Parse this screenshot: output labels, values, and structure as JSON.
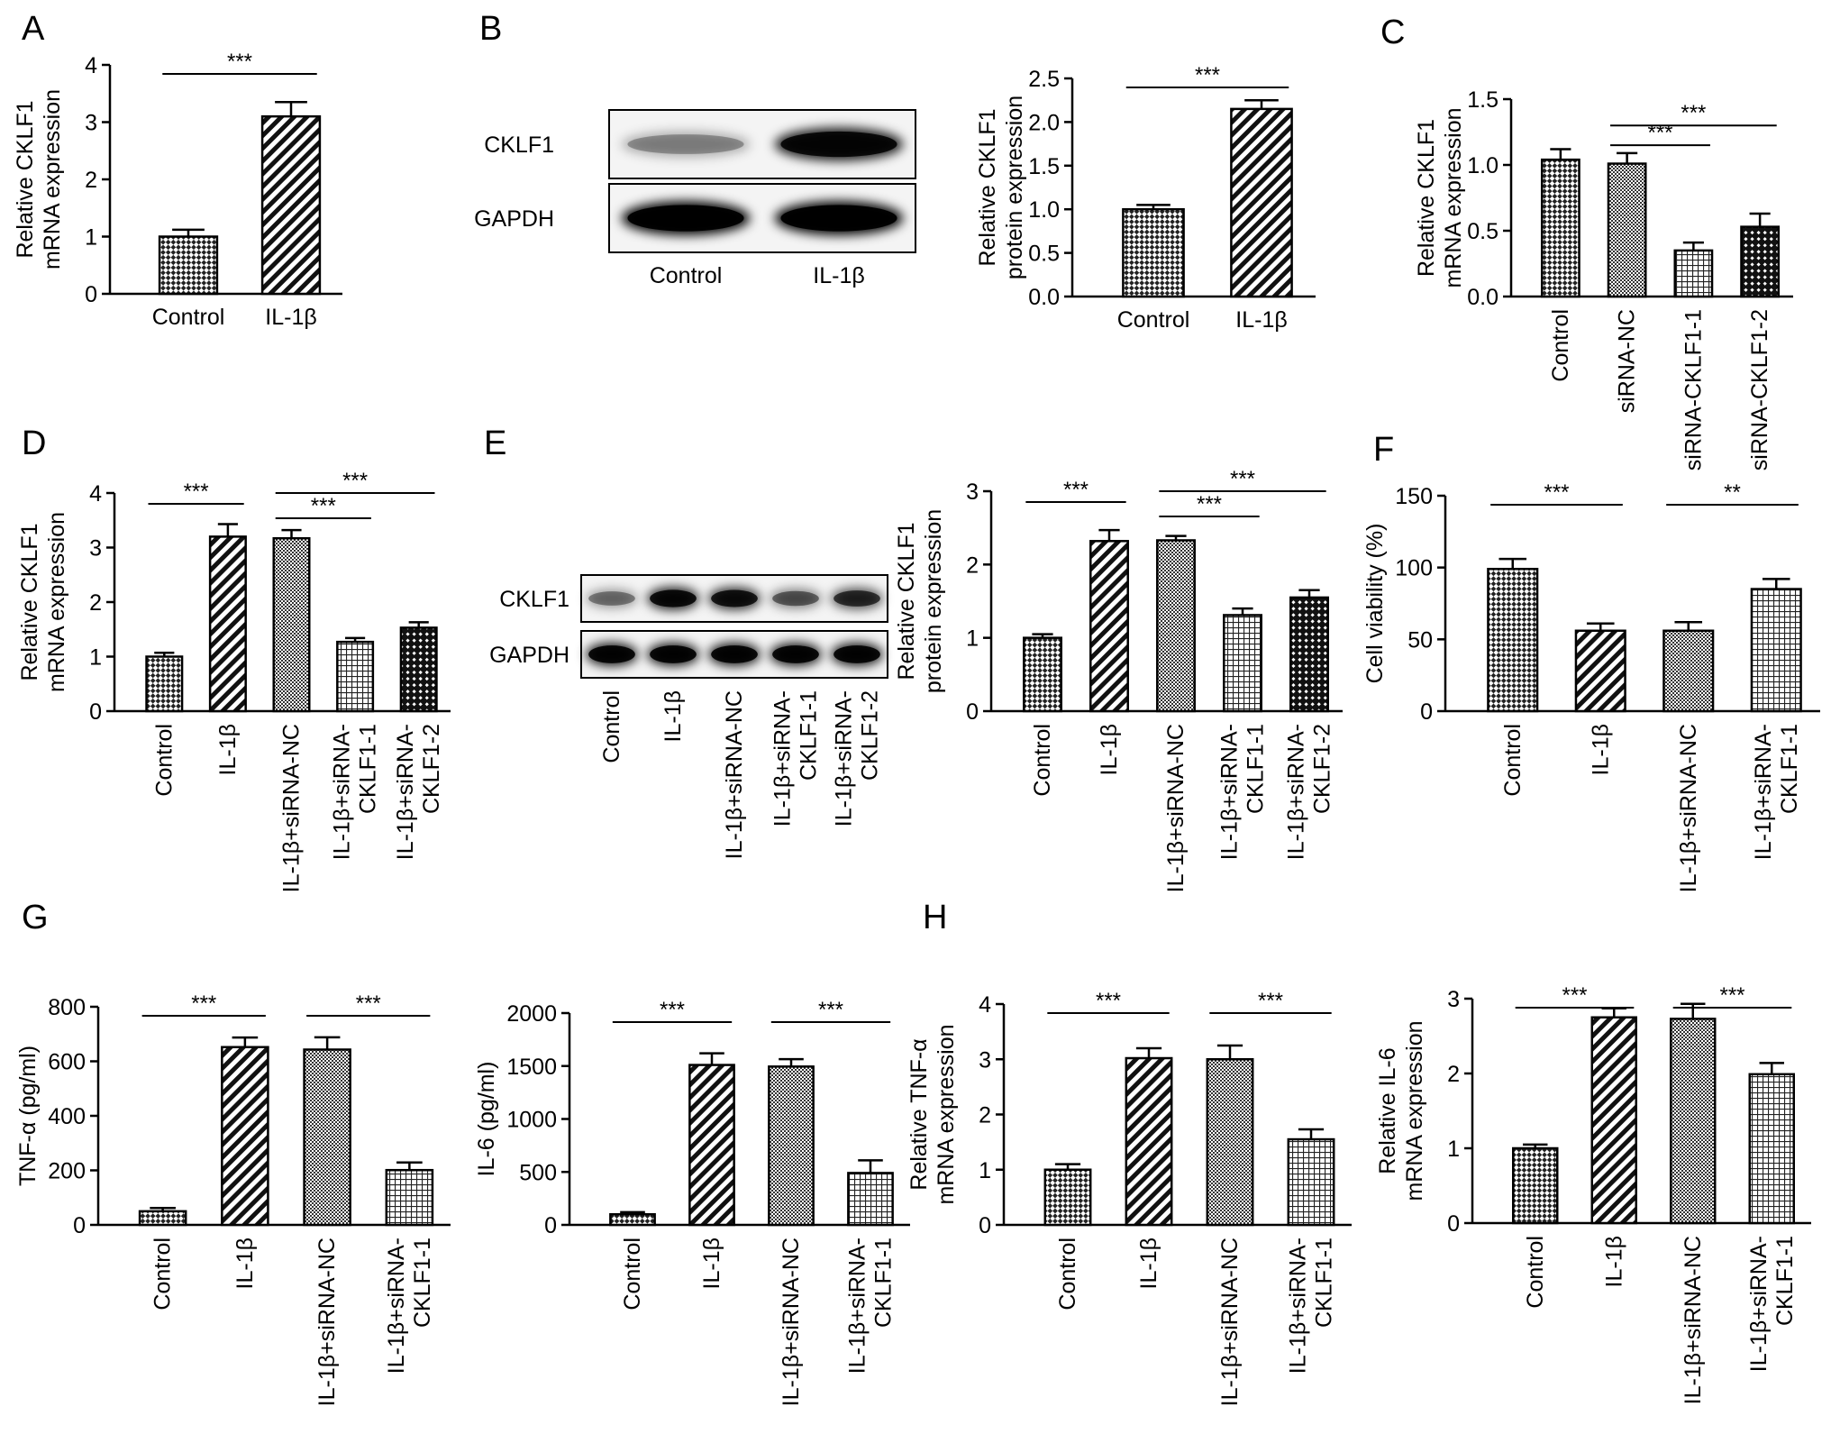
{
  "chart_data": [
    {
      "id": "A",
      "panel_label": "A",
      "type": "bar",
      "ylabel": [
        "Relative CKLF1",
        "mRNA expression"
      ],
      "ylim": [
        0,
        4
      ],
      "yticks": [
        0,
        1,
        2,
        3,
        4
      ],
      "categories": [
        "Control",
        "IL-1β"
      ],
      "values": [
        1.0,
        3.1
      ],
      "errors": [
        0.12,
        0.25
      ],
      "patterns": [
        "checker",
        "diag"
      ],
      "rotate_labels": false,
      "significance": [
        {
          "from": 0,
          "to": 1,
          "label": "***"
        }
      ]
    },
    {
      "id": "B",
      "panel_label": "B",
      "type": "bar",
      "ylabel": [
        "Relative CKLF1",
        "protein expression"
      ],
      "ylim": [
        0,
        2.5
      ],
      "yticks": [
        0,
        0.5,
        1.0,
        1.5,
        2.0,
        2.5
      ],
      "categories": [
        "Control",
        "IL-1β"
      ],
      "values": [
        1.0,
        2.15
      ],
      "errors": [
        0.05,
        0.1
      ],
      "patterns": [
        "checker",
        "diag"
      ],
      "rotate_labels": false,
      "significance": [
        {
          "from": 0,
          "to": 1,
          "label": "***"
        }
      ]
    },
    {
      "id": "C",
      "panel_label": "C",
      "type": "bar",
      "ylabel": [
        "Relative CKLF1",
        "mRNA expression"
      ],
      "ylim": [
        0,
        1.5
      ],
      "yticks": [
        0,
        0.5,
        1.0,
        1.5
      ],
      "categories": [
        "Control",
        "siRNA-NC",
        "siRNA-CKLF1-1",
        "siRNA-CKLF1-2"
      ],
      "values": [
        1.04,
        1.01,
        0.35,
        0.53
      ],
      "errors": [
        0.08,
        0.08,
        0.06,
        0.1
      ],
      "patterns": [
        "checker",
        "dense",
        "grid",
        "bold"
      ],
      "rotate_labels": true,
      "significance": [
        {
          "from": 1,
          "to": 2,
          "label": "***"
        },
        {
          "from": 1,
          "to": 3,
          "label": "***"
        }
      ]
    },
    {
      "id": "D",
      "panel_label": "D",
      "type": "bar",
      "ylabel": [
        "Relative CKLF1",
        "mRNA expression"
      ],
      "ylim": [
        0,
        4
      ],
      "yticks": [
        0,
        1,
        2,
        3,
        4
      ],
      "categories": [
        "Control",
        "IL-1β",
        "IL-1β+siRNA-NC",
        "IL-1β+siRNA-\nCKLF1-1",
        "IL-1β+siRNA-\nCKLF1-2"
      ],
      "values": [
        1.0,
        3.2,
        3.17,
        1.27,
        1.53
      ],
      "errors": [
        0.07,
        0.23,
        0.15,
        0.07,
        0.1
      ],
      "patterns": [
        "checker",
        "diag",
        "dense",
        "grid",
        "bold"
      ],
      "rotate_labels": true,
      "significance": [
        {
          "from": 0,
          "to": 1,
          "label": "***"
        },
        {
          "from": 2,
          "to": 3,
          "label": "***"
        },
        {
          "from": 2,
          "to": 4,
          "label": "***"
        }
      ]
    },
    {
      "id": "E",
      "panel_label": "E",
      "type": "bar",
      "ylabel": [
        "Relative CKLF1",
        "protein expression"
      ],
      "ylim": [
        0,
        3
      ],
      "yticks": [
        0,
        1,
        2,
        3
      ],
      "categories": [
        "Control",
        "IL-1β",
        "IL-1β+siRNA-NC",
        "IL-1β+siRNA-\nCKLF1-1",
        "IL-1β+siRNA-\nCKLF1-2"
      ],
      "values": [
        1.0,
        2.32,
        2.33,
        1.31,
        1.55
      ],
      "errors": [
        0.05,
        0.15,
        0.06,
        0.09,
        0.1
      ],
      "patterns": [
        "checker",
        "diag",
        "dense",
        "grid",
        "bold"
      ],
      "rotate_labels": true,
      "significance": [
        {
          "from": 0,
          "to": 1,
          "label": "***"
        },
        {
          "from": 2,
          "to": 3,
          "label": "***"
        },
        {
          "from": 2,
          "to": 4,
          "label": "***"
        }
      ]
    },
    {
      "id": "F",
      "panel_label": "F",
      "type": "bar",
      "ylabel": [
        "Cell viability (%)"
      ],
      "ylim": [
        0,
        150
      ],
      "yticks": [
        0,
        50,
        100,
        150
      ],
      "categories": [
        "Control",
        "IL-1β",
        "IL-1β+siRNA-NC",
        "IL-1β+siRNA-\nCKLF1-1"
      ],
      "values": [
        99,
        56,
        56,
        85
      ],
      "errors": [
        7,
        5,
        6,
        7
      ],
      "patterns": [
        "checker",
        "diag",
        "dense",
        "grid"
      ],
      "rotate_labels": true,
      "significance": [
        {
          "from": 0,
          "to": 1,
          "label": "***"
        },
        {
          "from": 2,
          "to": 3,
          "label": "**"
        }
      ]
    },
    {
      "id": "G1",
      "panel_label": "G",
      "type": "bar",
      "ylabel": [
        "TNF-α (pg/ml)"
      ],
      "ylim": [
        0,
        800
      ],
      "yticks": [
        0,
        200,
        400,
        600,
        800
      ],
      "categories": [
        "Control",
        "IL-1β",
        "IL-1β+siRNA-NC",
        "IL-1β+siRNA-\nCKLF1-1"
      ],
      "values": [
        50,
        652,
        643,
        201
      ],
      "errors": [
        12,
        35,
        45,
        28
      ],
      "patterns": [
        "checker",
        "diag",
        "dense",
        "grid"
      ],
      "rotate_labels": true,
      "significance": [
        {
          "from": 0,
          "to": 1,
          "label": "***"
        },
        {
          "from": 2,
          "to": 3,
          "label": "***"
        }
      ]
    },
    {
      "id": "G2",
      "panel_label": "",
      "type": "bar",
      "ylabel": [
        "IL-6 (pg/ml)"
      ],
      "ylim": [
        0,
        2000
      ],
      "yticks": [
        0,
        500,
        1000,
        1500,
        2000
      ],
      "categories": [
        "Control",
        "IL-1β",
        "IL-1β+siRNA-NC",
        "IL-1β+siRNA-\nCKLF1-1"
      ],
      "values": [
        100,
        1510,
        1495,
        490
      ],
      "errors": [
        20,
        110,
        70,
        120
      ],
      "patterns": [
        "checker",
        "diag",
        "dense",
        "grid"
      ],
      "rotate_labels": true,
      "significance": [
        {
          "from": 0,
          "to": 1,
          "label": "***"
        },
        {
          "from": 2,
          "to": 3,
          "label": "***"
        }
      ]
    },
    {
      "id": "H1",
      "panel_label": "H",
      "type": "bar",
      "ylabel": [
        "Relative TNF-α",
        "mRNA expression"
      ],
      "ylim": [
        0,
        4
      ],
      "yticks": [
        0,
        1,
        2,
        3,
        4
      ],
      "categories": [
        "Control",
        "IL-1β",
        "IL-1β+siRNA-NC",
        "IL-1β+siRNA-\nCKLF1-1"
      ],
      "values": [
        1.0,
        3.02,
        3.0,
        1.55
      ],
      "errors": [
        0.1,
        0.18,
        0.25,
        0.18
      ],
      "patterns": [
        "checker",
        "diag",
        "dense",
        "grid"
      ],
      "rotate_labels": true,
      "significance": [
        {
          "from": 0,
          "to": 1,
          "label": "***"
        },
        {
          "from": 2,
          "to": 3,
          "label": "***"
        }
      ]
    },
    {
      "id": "H2",
      "panel_label": "",
      "type": "bar",
      "ylabel": [
        "Relative IL-6",
        "mRNA expression"
      ],
      "ylim": [
        0,
        3
      ],
      "yticks": [
        0,
        1,
        2,
        3
      ],
      "categories": [
        "Control",
        "IL-1β",
        "IL-1β+siRNA-NC",
        "IL-1β+siRNA-\nCKLF1-1"
      ],
      "values": [
        1.0,
        2.75,
        2.73,
        1.99
      ],
      "errors": [
        0.05,
        0.12,
        0.2,
        0.15
      ],
      "patterns": [
        "checker",
        "diag",
        "dense",
        "grid"
      ],
      "rotate_labels": true,
      "significance": [
        {
          "from": 0,
          "to": 1,
          "label": "***"
        },
        {
          "from": 2,
          "to": 3,
          "label": "***"
        }
      ]
    }
  ],
  "blots": [
    {
      "id": "blotB",
      "rows": [
        "CKLF1",
        "GAPDH"
      ],
      "lanes": [
        "Control",
        "IL-1β"
      ],
      "rotate_labels": false,
      "intensity": [
        [
          0.3,
          0.9
        ],
        [
          1.0,
          1.0
        ]
      ]
    },
    {
      "id": "blotE",
      "rows": [
        "CKLF1",
        "GAPDH"
      ],
      "lanes": [
        "Control",
        "IL-1β",
        "IL-1β+siRNA-NC",
        "IL-1β+siRNA-\nCKLF1-1",
        "IL-1β+siRNA-\nCKLF1-2"
      ],
      "rotate_labels": true,
      "intensity": [
        [
          0.4,
          0.9,
          0.85,
          0.5,
          0.7
        ],
        [
          0.95,
          0.95,
          0.95,
          0.95,
          0.95
        ]
      ]
    }
  ]
}
